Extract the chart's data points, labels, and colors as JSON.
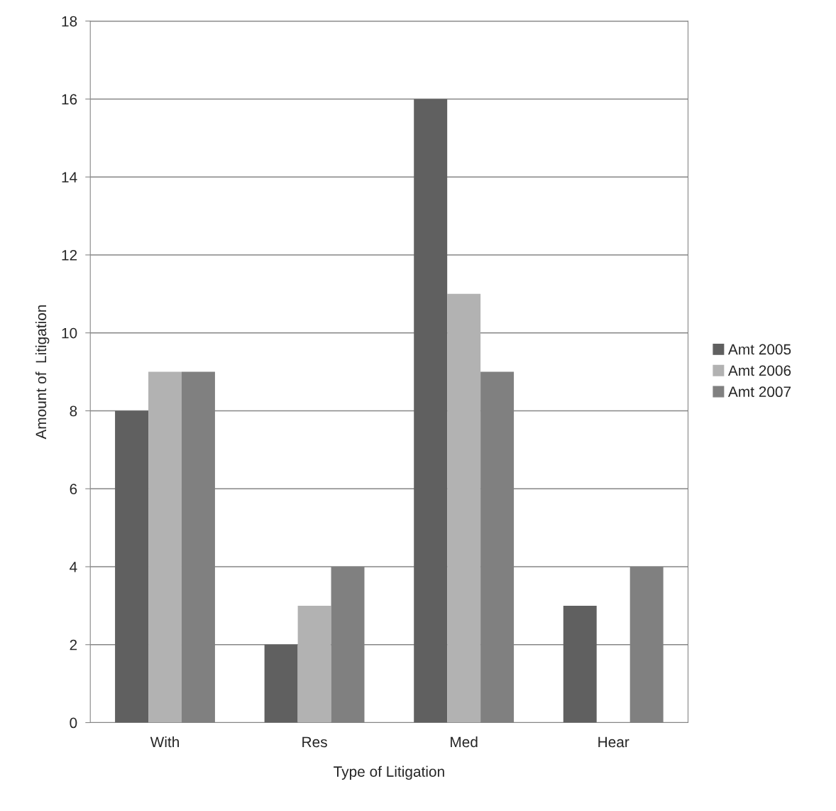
{
  "chart_data": {
    "type": "bar",
    "xlabel": "Type of Litigation",
    "ylabel": "Amount of  Litigation",
    "categories": [
      "With",
      "Res",
      "Med",
      "Hear"
    ],
    "series": [
      {
        "name": "Amt 2005",
        "color": "#606060",
        "values": [
          8,
          2,
          16,
          3
        ]
      },
      {
        "name": "Amt 2006",
        "color": "#b2b2b2",
        "values": [
          9,
          3,
          11,
          null
        ]
      },
      {
        "name": "Amt 2007",
        "color": "#808080",
        "values": [
          9,
          4,
          9,
          4
        ]
      }
    ],
    "ylim": [
      0,
      18
    ],
    "yticks": [
      0,
      2,
      4,
      6,
      8,
      10,
      12,
      14,
      16,
      18
    ],
    "grid": "y",
    "legend": "right"
  }
}
